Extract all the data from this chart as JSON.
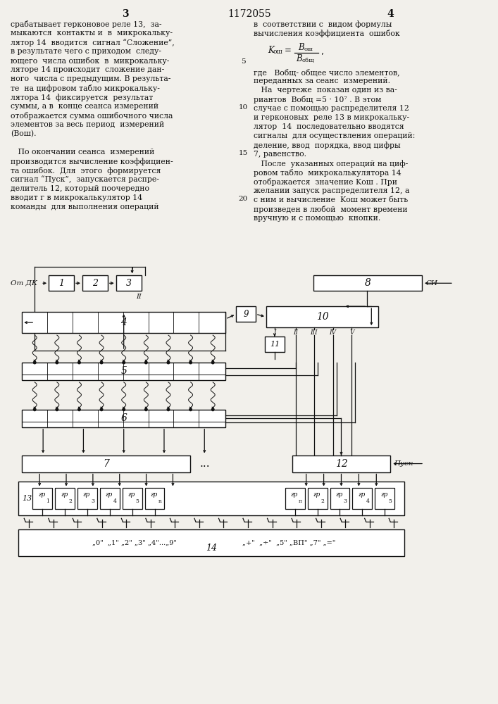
{
  "bg_color": "#f2f0eb",
  "tc": "#111111",
  "bc": "#111111",
  "title": "1172055",
  "page_l": "3",
  "page_r": "4",
  "left_col1": [
    "срабатывает герконовое реле 13,  за-",
    "мыкаются  контакты и  в  микрокальку-",
    "лятор 14  вводится  сигнал “Сложение”,",
    "в результате чего с приходом  следу-",
    "ющего  числа ошибок  в  микрокальку-",
    "ляторе 14 происходит  сложение дан-",
    "ного  числа с предыдущим. В результа-",
    "те  на цифровом табло микрокальку-",
    "лятора 14  фиксируется  результат",
    "суммы, а в  конце сеанса измерений",
    "отображается сумма ошибочного числа",
    "элементов за весь период  измерений",
    "(Вош)."
  ],
  "left_col2": [
    "   По окончании сеанса  измерений",
    "производится вычисление коэффициен-",
    "та ошибок.  Для  этого  формируется",
    "сигнал “Пуск”,  запускается распре-",
    "делитель 12, который поочередно",
    "вводит г в микрокалькулятор 14",
    "команды  для выполнения операций"
  ],
  "right_col1": [
    "в  соответствии с  видом формулы",
    "вычисления коэффициента  ошибок"
  ],
  "right_col2": [
    "где   Bобщ- общее число элементов,",
    "переданных за сеанс  измерений.",
    "   На  чертеже  показан один из ва-",
    "риантов  Bобщ =5 · 10⁷ . В этом",
    "случае с помощью распределителя 12",
    "и герконовых  реле 13 в микрокальку-",
    "лятор  14  последовательно вводятся",
    "сигналы  для осуществления операций:",
    "деление, ввод  порядка, ввод цифры",
    "7, равенство.",
    "   После  указанных операций на циф-",
    "ровом табло  микрокалькулятора 14",
    "отображается  значение Kош . При",
    "желании запуск распределителя 12, а",
    "с ним и вычисление  Kош может быть",
    "произведен в любой  момент времени",
    "вручную и с помощью  кнопки."
  ]
}
